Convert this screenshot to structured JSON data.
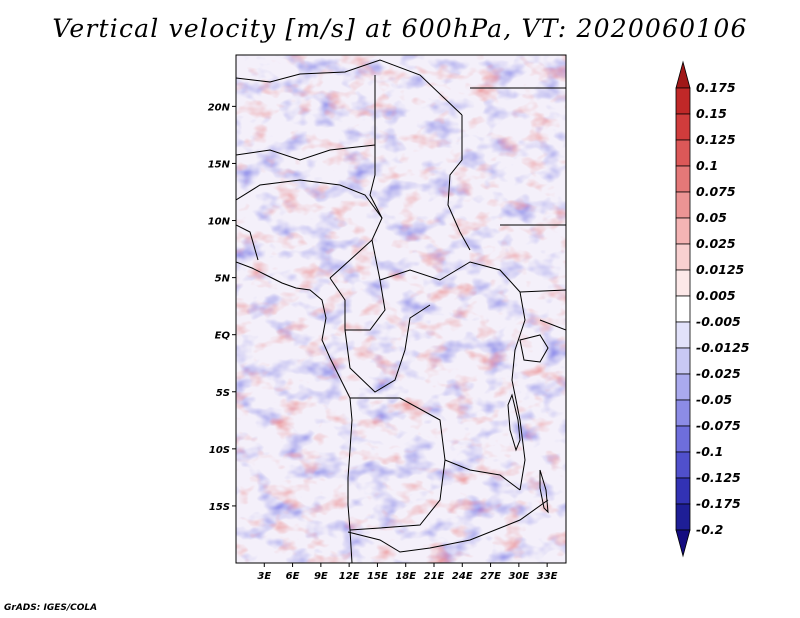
{
  "title": "Vertical velocity [m/s] at 600hPa, VT: 2020060106",
  "credit": "GrADS: IGES/COLA",
  "map": {
    "lon_range": [
      0,
      35
    ],
    "lat_range": [
      -20,
      24.5
    ],
    "lat_ticks": [
      {
        "lat": 20,
        "label": "20N"
      },
      {
        "lat": 15,
        "label": "15N"
      },
      {
        "lat": 10,
        "label": "10N"
      },
      {
        "lat": 5,
        "label": "5N"
      },
      {
        "lat": 0,
        "label": "EQ"
      },
      {
        "lat": -5,
        "label": "5S"
      },
      {
        "lat": -10,
        "label": "10S"
      },
      {
        "lat": -15,
        "label": "15S"
      }
    ],
    "lon_ticks": [
      {
        "lon": 3,
        "label": "3E"
      },
      {
        "lon": 6,
        "label": "6E"
      },
      {
        "lon": 9,
        "label": "9E"
      },
      {
        "lon": 12,
        "label": "12E"
      },
      {
        "lon": 15,
        "label": "15E"
      },
      {
        "lon": 18,
        "label": "18E"
      },
      {
        "lon": 21,
        "label": "21E"
      },
      {
        "lon": 24,
        "label": "24E"
      },
      {
        "lon": 27,
        "label": "27E"
      },
      {
        "lon": 30,
        "label": "30E"
      },
      {
        "lon": 33,
        "label": "33E"
      }
    ]
  },
  "colorbar": {
    "levels": [
      "0.175",
      "0.15",
      "0.125",
      "0.1",
      "0.075",
      "0.05",
      "0.025",
      "0.0125",
      "0.005",
      "-0.005",
      "-0.0125",
      "-0.025",
      "-0.05",
      "-0.075",
      "-0.1",
      "-0.125",
      "-0.175",
      "-0.2"
    ],
    "colors": [
      "#a01818",
      "#c02828",
      "#d03c3c",
      "#dc5858",
      "#e47878",
      "#ec9494",
      "#f4b4b4",
      "#f8d0d0",
      "#fce8e8",
      "#ffffff",
      "#e2e2fa",
      "#c8c8f4",
      "#aaaaee",
      "#8c8ce6",
      "#6e6edc",
      "#5050cc",
      "#3232b4",
      "#1e1e96",
      "#140c80"
    ]
  }
}
